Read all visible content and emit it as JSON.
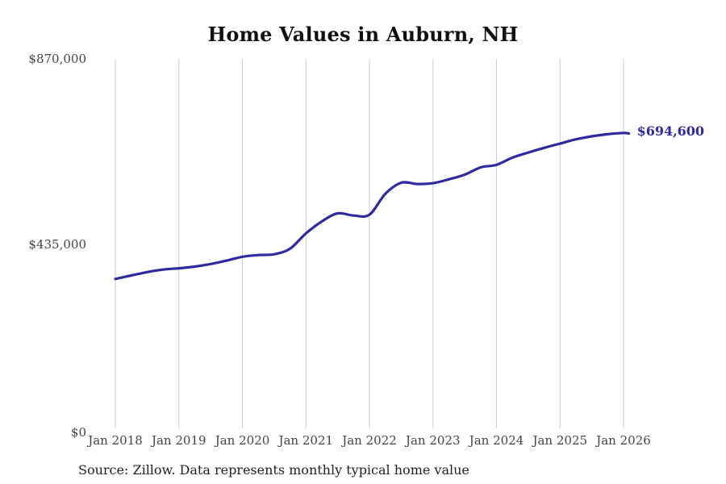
{
  "chart": {
    "title": "Home Values in Auburn, NH",
    "source_note": "Source: Zillow. Data represents monthly typical home value",
    "end_label": "$694,600",
    "line_color": "#2f2aa0",
    "grid_color": "#cccccc",
    "axis_label_color": "#444444"
  },
  "chart_data": {
    "type": "line",
    "title": "Home Values in Auburn, NH",
    "series_name": "Monthly typical home value (Zillow)",
    "x": [
      "Jan 2018",
      "Apr 2018",
      "Jul 2018",
      "Oct 2018",
      "Jan 2019",
      "Apr 2019",
      "Jul 2019",
      "Oct 2019",
      "Jan 2020",
      "Apr 2020",
      "Jul 2020",
      "Oct 2020",
      "Jan 2021",
      "Apr 2021",
      "Jul 2021",
      "Oct 2021",
      "Jan 2022",
      "Apr 2022",
      "Jul 2022",
      "Oct 2022",
      "Jan 2023",
      "Apr 2023",
      "Jul 2023",
      "Oct 2023",
      "Jan 2024",
      "Apr 2024",
      "Jul 2024",
      "Oct 2024",
      "Jan 2025",
      "Apr 2025",
      "Jul 2025",
      "Oct 2025",
      "Jan 2026",
      "Feb 2026"
    ],
    "month_index": [
      0,
      3,
      6,
      9,
      12,
      15,
      18,
      21,
      24,
      27,
      30,
      33,
      36,
      39,
      42,
      45,
      48,
      51,
      54,
      57,
      60,
      63,
      66,
      69,
      72,
      75,
      78,
      81,
      84,
      87,
      90,
      93,
      96,
      97
    ],
    "values": [
      353000,
      361000,
      369000,
      375000,
      378000,
      382000,
      388000,
      396000,
      405000,
      409000,
      411000,
      424000,
      460000,
      488000,
      507000,
      502000,
      504000,
      553000,
      579000,
      576000,
      578000,
      587000,
      598000,
      615000,
      621000,
      638000,
      650000,
      661000,
      671000,
      681000,
      688000,
      693000,
      696000,
      694600
    ],
    "final_value": 694600,
    "end_annotation": "$694,600",
    "xtick_labels": [
      "Jan 2018",
      "Jan 2019",
      "Jan 2020",
      "Jan 2021",
      "Jan 2022",
      "Jan 2023",
      "Jan 2024",
      "Jan 2025",
      "Jan 2026"
    ],
    "xtick_month_index": [
      0,
      12,
      24,
      36,
      48,
      60,
      72,
      84,
      96
    ],
    "ytick_labels": [
      "$0",
      "$435,000",
      "$870,000"
    ],
    "ytick_values": [
      0,
      435000,
      870000
    ],
    "ylim": [
      0,
      870000
    ],
    "grid": "vertical-only",
    "legend": "none"
  }
}
